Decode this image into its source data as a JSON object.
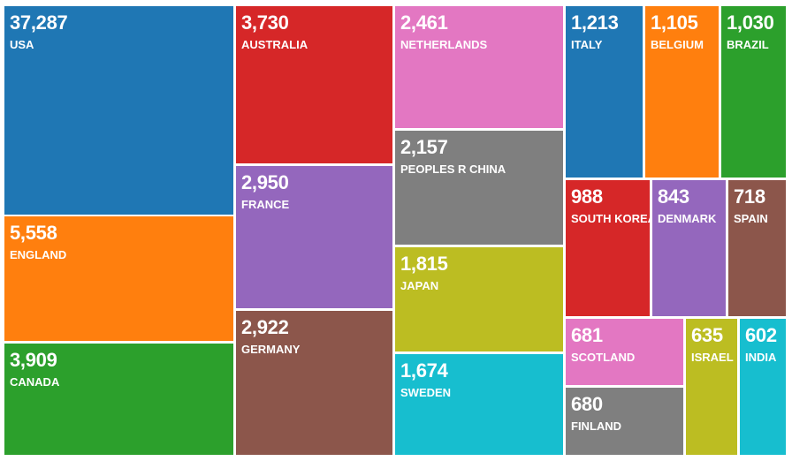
{
  "chart_data": {
    "type": "treemap",
    "title": "",
    "items": [
      {
        "name": "USA",
        "value": 37287,
        "value_label": "37,287",
        "color": "#1f77b4"
      },
      {
        "name": "ENGLAND",
        "value": 5558,
        "value_label": "5,558",
        "color": "#ff7f0e"
      },
      {
        "name": "CANADA",
        "value": 3909,
        "value_label": "3,909",
        "color": "#2ca02c"
      },
      {
        "name": "AUSTRALIA",
        "value": 3730,
        "value_label": "3,730",
        "color": "#d62728"
      },
      {
        "name": "FRANCE",
        "value": 2950,
        "value_label": "2,950",
        "color": "#9467bd"
      },
      {
        "name": "GERMANY",
        "value": 2922,
        "value_label": "2,922",
        "color": "#8c564b"
      },
      {
        "name": "NETHERLANDS",
        "value": 2461,
        "value_label": "2,461",
        "color": "#e377c2"
      },
      {
        "name": "PEOPLES R CHINA",
        "value": 2157,
        "value_label": "2,157",
        "color": "#7f7f7f"
      },
      {
        "name": "JAPAN",
        "value": 1815,
        "value_label": "1,815",
        "color": "#bcbd22"
      },
      {
        "name": "SWEDEN",
        "value": 1674,
        "value_label": "1,674",
        "color": "#17becf"
      },
      {
        "name": "ITALY",
        "value": 1213,
        "value_label": "1,213",
        "color": "#1f77b4"
      },
      {
        "name": "BELGIUM",
        "value": 1105,
        "value_label": "1,105",
        "color": "#ff7f0e"
      },
      {
        "name": "BRAZIL",
        "value": 1030,
        "value_label": "1,030",
        "color": "#2ca02c"
      },
      {
        "name": "SOUTH KOREA",
        "value": 988,
        "value_label": "988",
        "color": "#d62728"
      },
      {
        "name": "DENMARK",
        "value": 843,
        "value_label": "843",
        "color": "#9467bd"
      },
      {
        "name": "SPAIN",
        "value": 718,
        "value_label": "718",
        "color": "#8c564b"
      },
      {
        "name": "SCOTLAND",
        "value": 681,
        "value_label": "681",
        "color": "#e377c2"
      },
      {
        "name": "FINLAND",
        "value": 680,
        "value_label": "680",
        "color": "#7f7f7f"
      },
      {
        "name": "ISRAEL",
        "value": 635,
        "value_label": "635",
        "color": "#bcbd22"
      },
      {
        "name": "INDIA",
        "value": 602,
        "value_label": "602",
        "color": "#17becf"
      }
    ]
  }
}
